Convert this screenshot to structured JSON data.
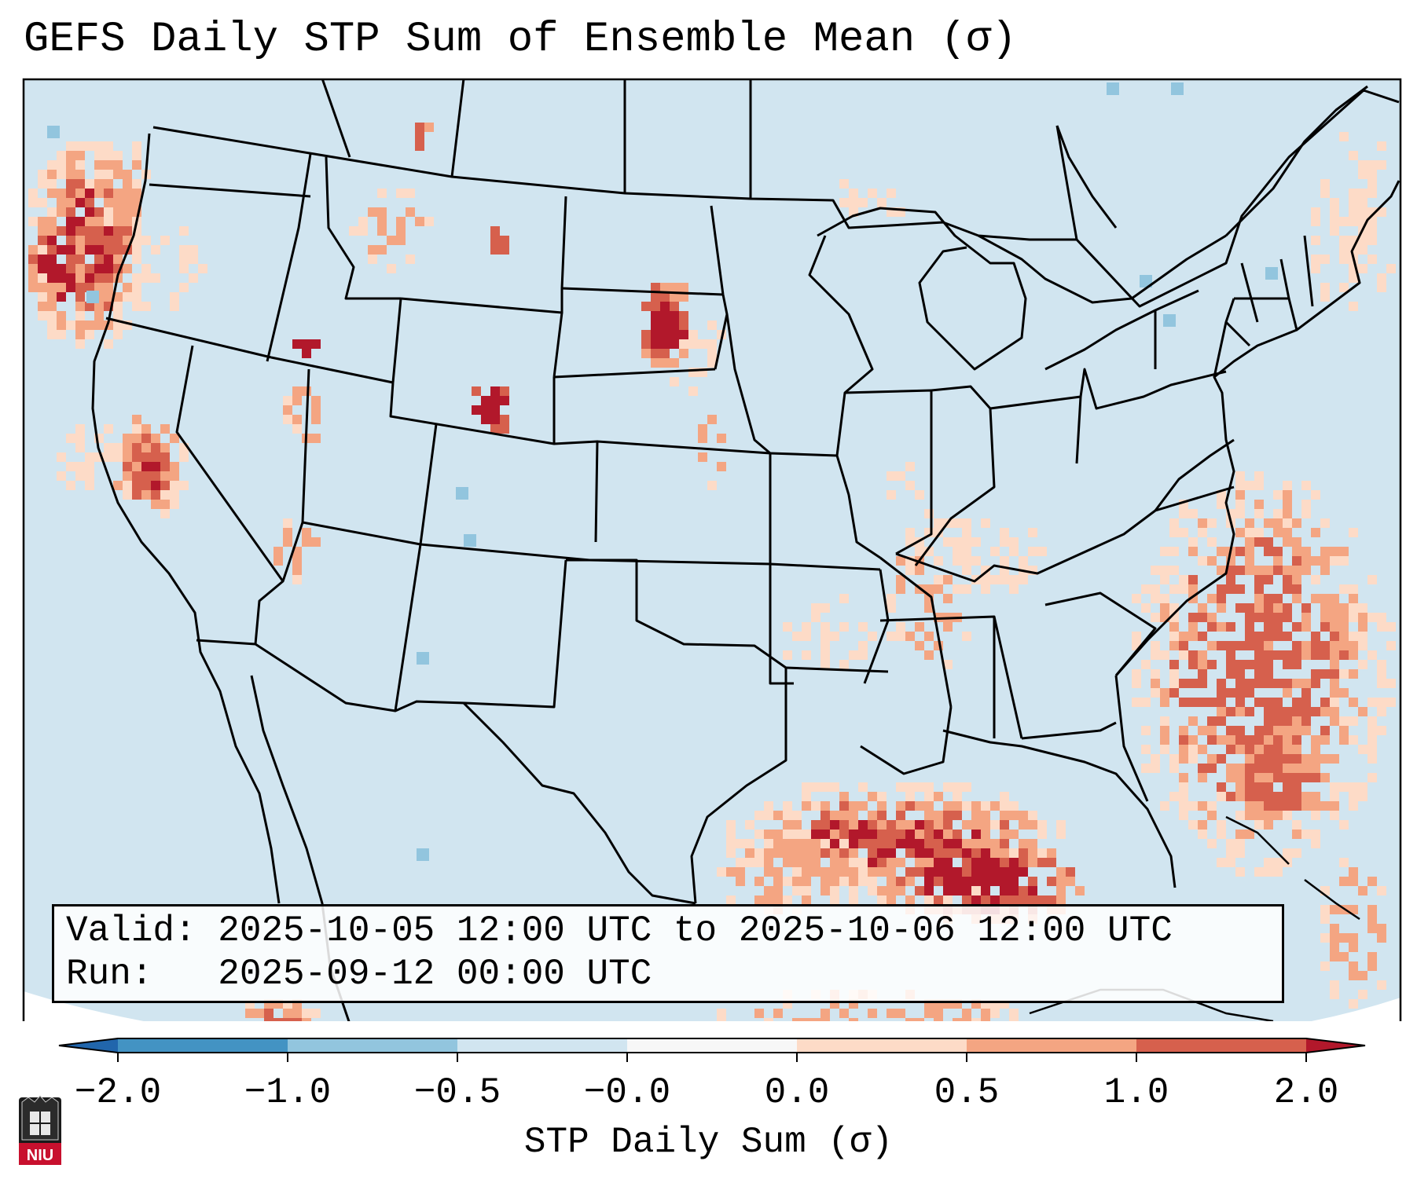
{
  "title": "GEFS Daily STP Sum of Ensemble Mean (σ)",
  "info": {
    "valid_line": "Valid: 2025-10-05 12:00 UTC to 2025-10-06 12:00 UTC",
    "run_line": "Run:   2025-09-12 00:00 UTC"
  },
  "map": {
    "region": "Continental United States",
    "background_color": "#d1e5f0"
  },
  "colorbar": {
    "label": "STP Daily Sum (σ)",
    "ticks": [
      "−2.0",
      "−1.0",
      "−0.5",
      "−0.0",
      "0.0",
      "0.5",
      "1.0",
      "2.0"
    ],
    "bins": [
      {
        "range": "below -2.0",
        "color": "#2166ac"
      },
      {
        "range": "-2.0 to -1.0",
        "color": "#4393c3"
      },
      {
        "range": "-1.0 to -0.5",
        "color": "#92c5de"
      },
      {
        "range": "-0.5 to -0.0",
        "color": "#d1e5f0"
      },
      {
        "range": "-0.0 to 0.0",
        "color": "#f7f7f7"
      },
      {
        "range": "0.0 to 0.5",
        "color": "#fddbc7"
      },
      {
        "range": "0.5 to 1.0",
        "color": "#f4a582"
      },
      {
        "range": "1.0 to 2.0",
        "color": "#d6604d"
      },
      {
        "range": "above 2.0",
        "color": "#b2182b"
      }
    ]
  },
  "logo": {
    "text": "NIU"
  },
  "chart_data": {
    "type": "heatmap",
    "title": "GEFS Daily STP Sum of Ensemble Mean (σ)",
    "colorbar_label": "STP Daily Sum (σ)",
    "levels": [
      -2.0,
      -1.0,
      -0.5,
      -0.0,
      0.0,
      0.5,
      1.0,
      2.0
    ],
    "notable_features": [
      {
        "area": "Western South Dakota",
        "value_range": "> 2.0"
      },
      {
        "area": "Central Wyoming",
        "value_range": "> 2.0"
      },
      {
        "area": "Central California",
        "value_range": "> 2.0"
      },
      {
        "area": "Northern Gulf of Mexico",
        "value_range": "1.0 to > 2.0"
      },
      {
        "area": "Western Atlantic",
        "value_range": "0.0 to 2.0"
      },
      {
        "area": "Pacific off Washington/Oregon",
        "value_range": "0.5 to > 2.0"
      }
    ]
  }
}
